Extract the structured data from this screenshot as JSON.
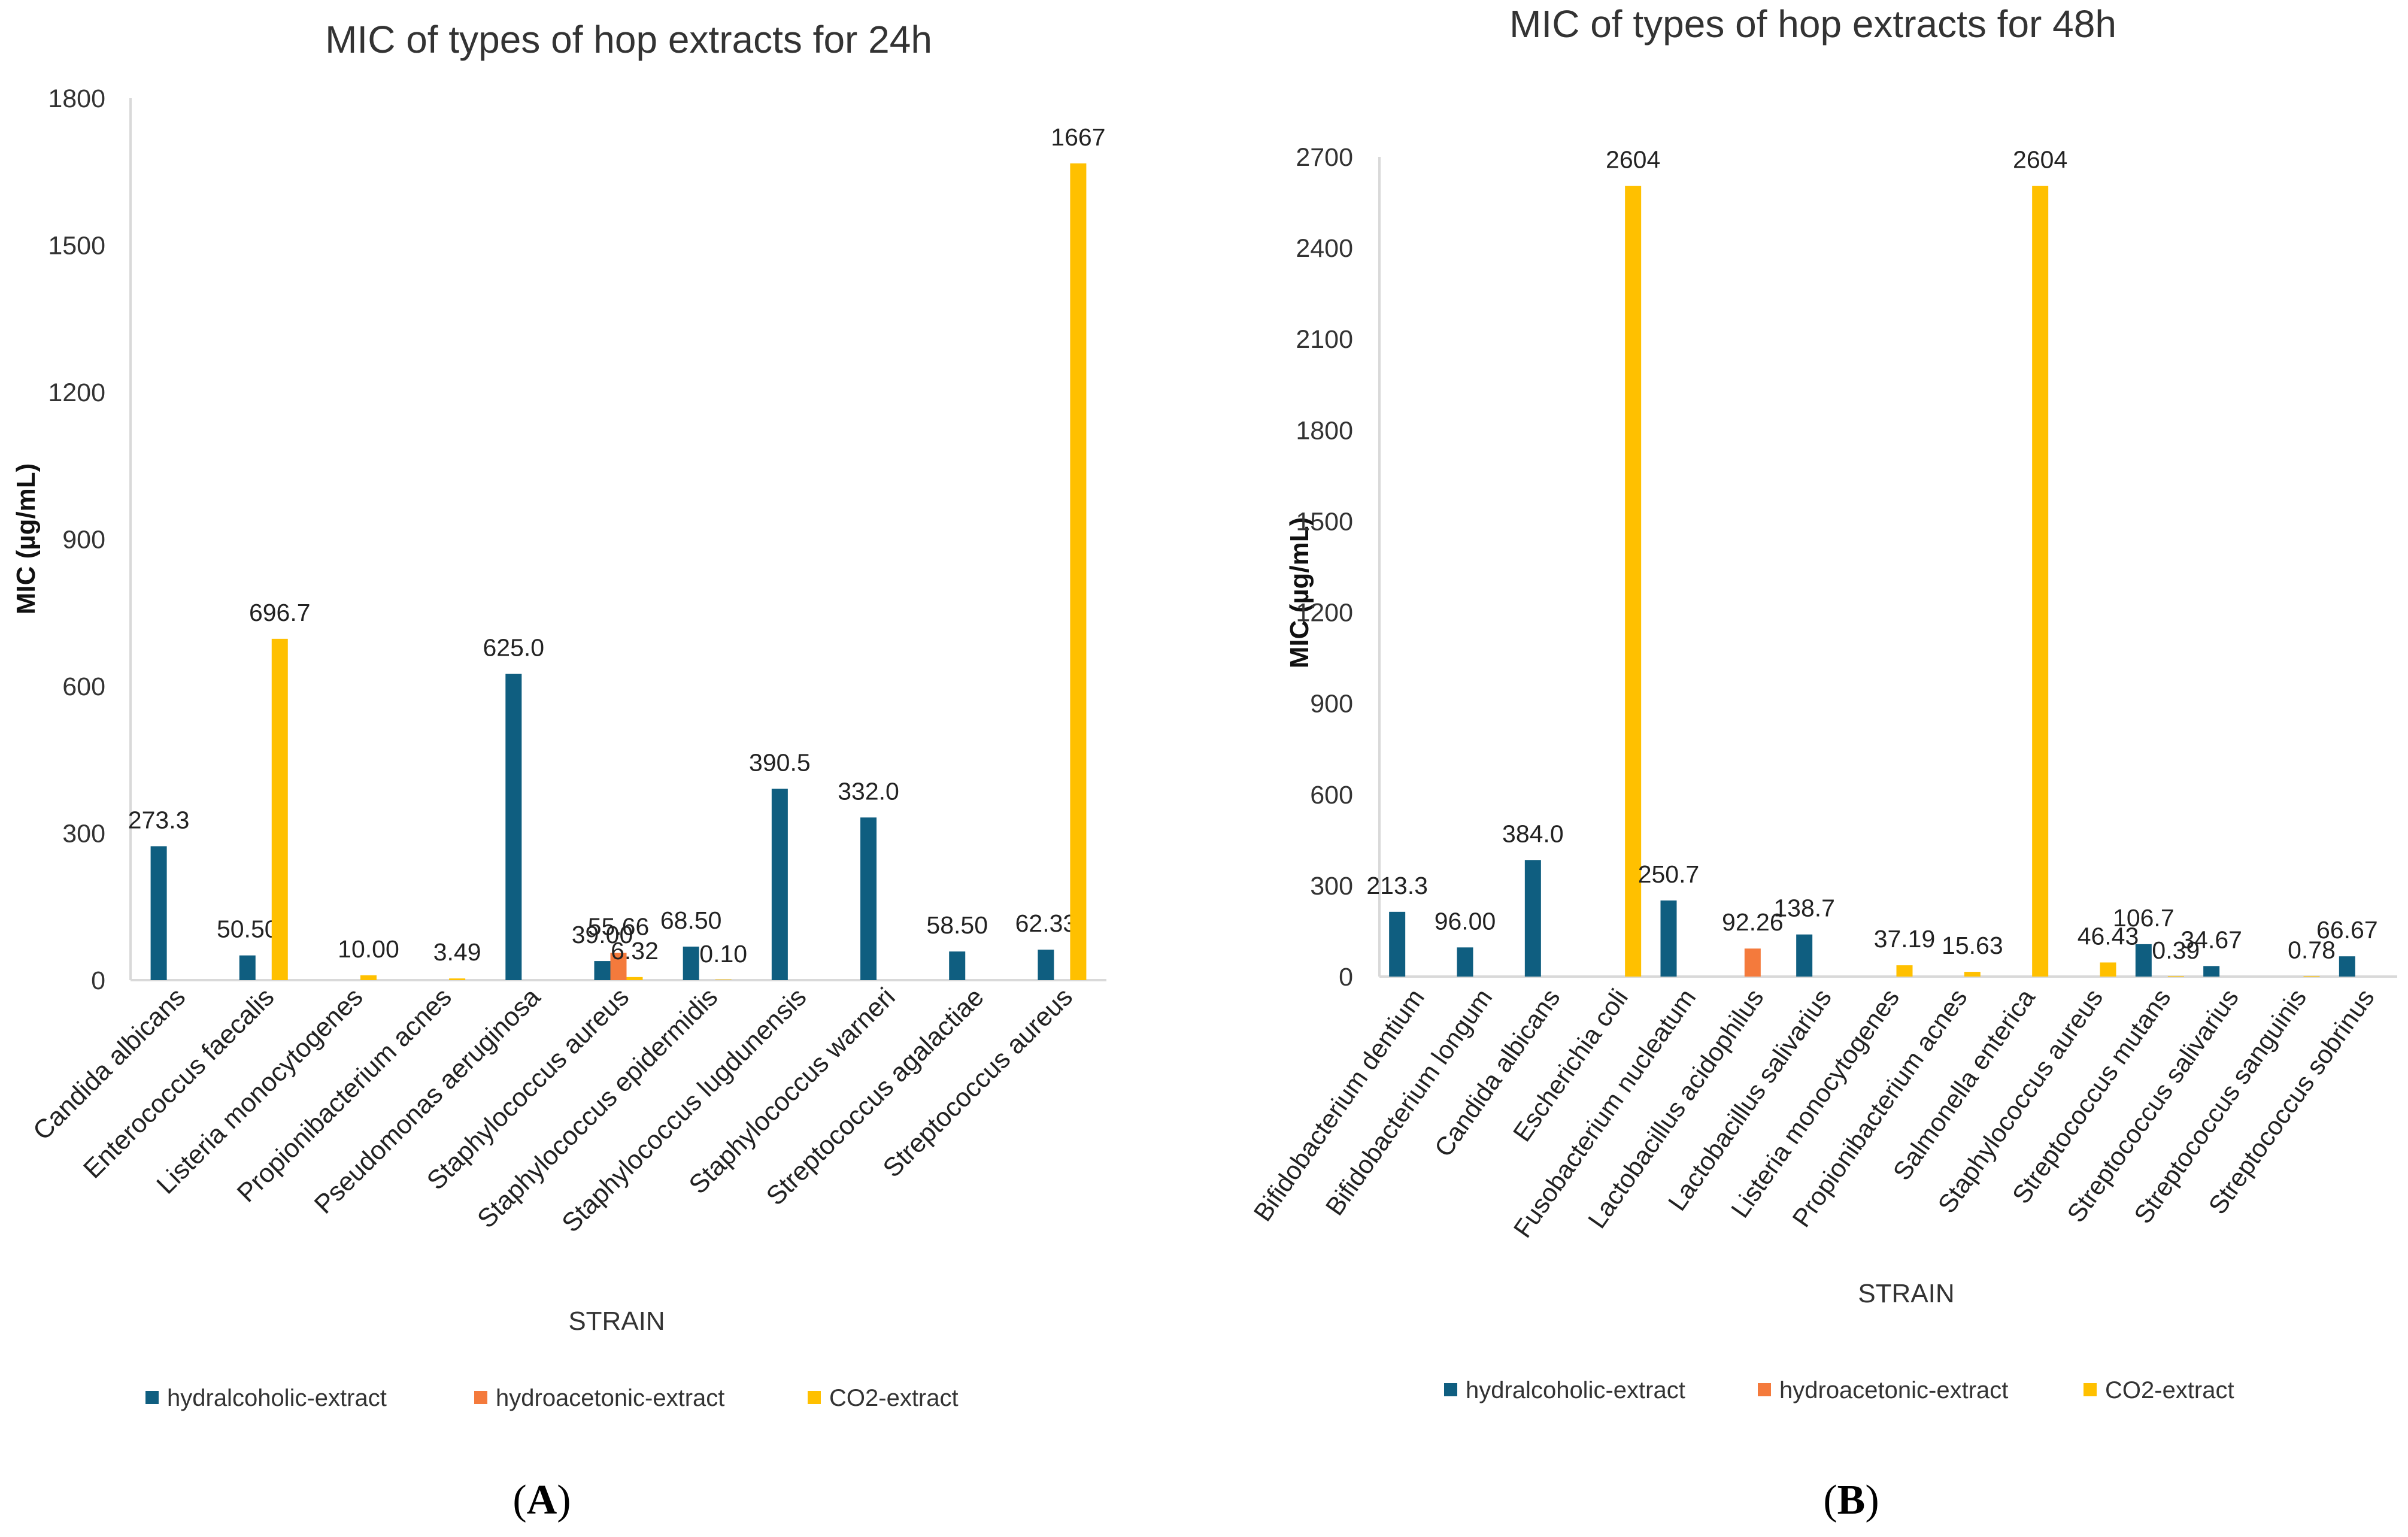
{
  "colors": {
    "hydralcoholic": "#0f5e80",
    "hydroacetonic": "#f47a3c",
    "co2": "#ffc000",
    "axis": "#d9d9d9",
    "text": "#222222"
  },
  "chart_data": [
    {
      "panel_label": "A",
      "type": "bar",
      "title": "MIC of  types of hop extracts for 24h",
      "xlabel": "STRAIN",
      "ylabel": "MIC  (µg/mL)",
      "ylim": [
        0,
        1800
      ],
      "yticks": [
        0,
        300,
        600,
        900,
        1200,
        1500,
        1800
      ],
      "grid": false,
      "legend_position": "bottom",
      "categories": [
        "Candida albicans",
        "Enterococcus faecalis",
        "Listeria monocytogenes",
        "Propionibacterium acnes",
        "Pseudomonas aeruginosa",
        "Staphylococcus aureus",
        "Staphylococcus epidermidis",
        "Staphylococcus lugdunensis",
        "Staphylococcus warneri",
        "Streptococcus agalactiae",
        "Streptococcus aureus"
      ],
      "series": [
        {
          "name": "hydralcoholic-extract",
          "key": "hydralcoholic",
          "values": [
            273.3,
            50.5,
            null,
            null,
            625.0,
            39.0,
            68.5,
            390.5,
            332.0,
            58.5,
            62.33
          ],
          "labels": [
            "273.3",
            "50.50",
            null,
            null,
            "625.0",
            "39.00",
            "68.50",
            "390.5",
            "332.0",
            "58.50",
            "62.33"
          ]
        },
        {
          "name": "hydroacetonic-extract",
          "key": "hydroacetonic",
          "values": [
            null,
            null,
            null,
            null,
            null,
            55.66,
            null,
            null,
            null,
            null,
            null
          ],
          "labels": [
            null,
            null,
            null,
            null,
            null,
            "55.66",
            null,
            null,
            null,
            null,
            null
          ]
        },
        {
          "name": "CO2-extract",
          "key": "co2",
          "values": [
            null,
            696.7,
            10.0,
            3.49,
            null,
            6.32,
            0.1,
            null,
            null,
            null,
            1667
          ],
          "labels": [
            null,
            "696.7",
            "10.00",
            "3.49",
            null,
            "6.32",
            "0.10",
            null,
            null,
            null,
            "1667"
          ]
        }
      ]
    },
    {
      "panel_label": "B",
      "type": "bar",
      "title": "MIC of  types of hop extracts for 48h",
      "xlabel": "STRAIN",
      "ylabel": "MIC  (µg/mL)",
      "ylim": [
        0,
        2700
      ],
      "yticks": [
        0,
        300,
        600,
        900,
        1200,
        1500,
        1800,
        2100,
        2400,
        2700
      ],
      "grid": false,
      "legend_position": "bottom",
      "categories": [
        "Bifidobacterium dentium",
        "Bifidobacterium longum",
        "Candida albicans",
        "Escherichia coli",
        "Fusobacterium nucleatum",
        "Lactobacillus acidophilus",
        "Lactobacillus salivarius",
        "Listeria monocytogenes",
        "Propionibacterium acnes",
        "Salmonella enterica",
        "Staphylococcus aureus",
        "Streptococcus mutans",
        "Streptococcus salivarius",
        "Streptococcus sanguinis",
        "Streptococcus sobrinus"
      ],
      "series": [
        {
          "name": "hydralcoholic-extract",
          "key": "hydralcoholic",
          "values": [
            213.3,
            96.0,
            384.0,
            null,
            250.7,
            null,
            138.7,
            null,
            null,
            null,
            null,
            106.7,
            34.67,
            null,
            66.67
          ],
          "labels": [
            "213.3",
            "96.00",
            "384.0",
            null,
            "250.7",
            null,
            "138.7",
            null,
            null,
            null,
            null,
            "106.7",
            "34.67",
            null,
            "66.67"
          ]
        },
        {
          "name": "hydroacetonic-extract",
          "key": "hydroacetonic",
          "values": [
            null,
            null,
            null,
            null,
            null,
            92.26,
            null,
            null,
            null,
            null,
            null,
            null,
            null,
            null,
            null
          ],
          "labels": [
            null,
            null,
            null,
            null,
            null,
            "92.26",
            null,
            null,
            null,
            null,
            null,
            null,
            null,
            null,
            null
          ]
        },
        {
          "name": "CO2-extract",
          "key": "co2",
          "values": [
            null,
            null,
            null,
            2604,
            null,
            null,
            null,
            37.19,
            15.63,
            2604,
            46.43,
            0.39,
            null,
            0.78,
            null
          ],
          "labels": [
            null,
            null,
            null,
            "2604",
            null,
            null,
            null,
            "37.19",
            "15.63",
            "2604",
            "46.43",
            "0.39",
            null,
            "0.78",
            null
          ]
        }
      ]
    }
  ]
}
